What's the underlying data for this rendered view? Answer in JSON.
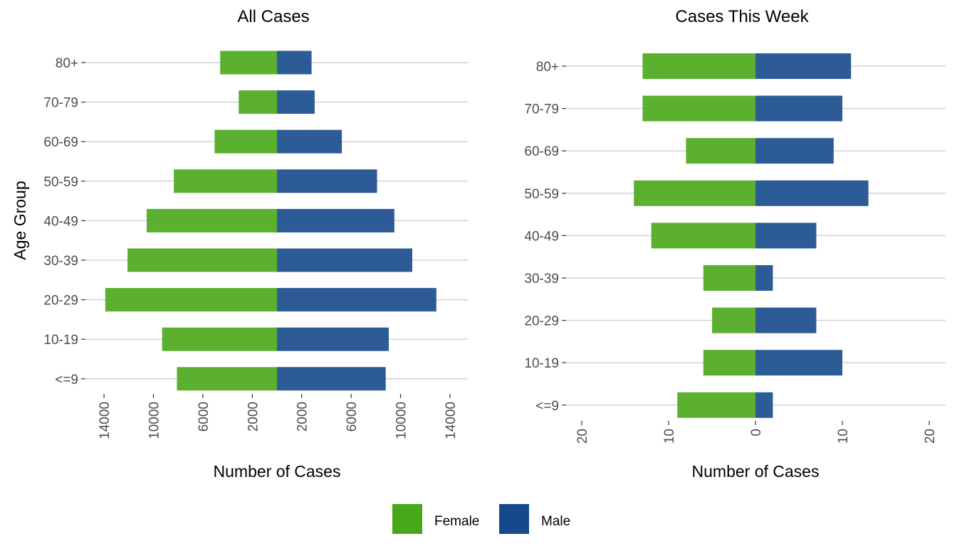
{
  "chart_data": [
    {
      "type": "bar",
      "orientation": "horizontal-diverging",
      "title": "All Cases",
      "xlabel": "Number of Cases",
      "ylabel": "Age Group",
      "categories": [
        "80+",
        "70-79",
        "60-69",
        "50-59",
        "40-49",
        "30-39",
        "20-29",
        "10-19",
        "<=9"
      ],
      "series": [
        {
          "name": "Female",
          "values": [
            4600,
            3100,
            5050,
            8350,
            10550,
            12100,
            13900,
            9300,
            8100
          ]
        },
        {
          "name": "Male",
          "values": [
            2800,
            3050,
            5250,
            8100,
            9500,
            10950,
            12900,
            9050,
            8800
          ]
        }
      ],
      "xticks": [
        -14000,
        -10000,
        -6000,
        -2000,
        2000,
        6000,
        10000,
        14000
      ],
      "xtick_labels": [
        "14000",
        "10000",
        "6000",
        "2000",
        "2000",
        "6000",
        "10000",
        "14000"
      ],
      "xlim": [
        -14500,
        15500
      ],
      "grid": true
    },
    {
      "type": "bar",
      "orientation": "horizontal-diverging",
      "title": "Cases This Week",
      "xlabel": "Number of Cases",
      "ylabel": "",
      "categories": [
        "80+",
        "70-79",
        "60-69",
        "50-59",
        "40-49",
        "30-39",
        "20-29",
        "10-19",
        "<=9"
      ],
      "series": [
        {
          "name": "Female",
          "values": [
            13,
            13,
            8,
            14,
            12,
            6,
            5,
            6,
            9
          ]
        },
        {
          "name": "Male",
          "values": [
            11,
            10,
            9,
            13,
            7,
            2,
            7,
            10,
            2
          ]
        }
      ],
      "xticks": [
        -20,
        -10,
        0,
        10,
        20
      ],
      "xtick_labels": [
        "20",
        "10",
        "0",
        "10",
        "20"
      ],
      "xlim": [
        -22,
        22
      ],
      "grid": true
    }
  ],
  "legend": {
    "position": "bottom",
    "items": [
      {
        "label": "Female",
        "color": "#49a71a"
      },
      {
        "label": "Male",
        "color": "#16498b"
      }
    ]
  }
}
